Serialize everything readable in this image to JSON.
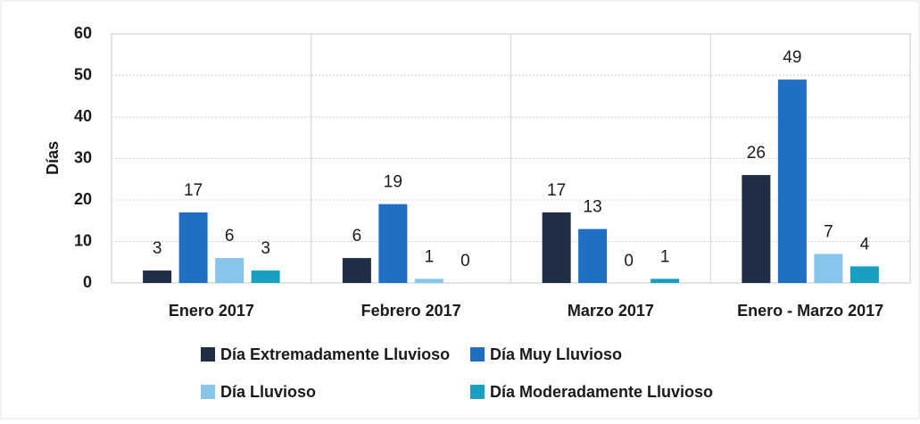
{
  "chart_data": {
    "type": "bar",
    "y_label": "Días",
    "categories": [
      "Enero 2017",
      "Febrero 2017",
      "Marzo 2017",
      "Enero - Marzo 2017"
    ],
    "series": [
      {
        "name": "Día Extremadamente Lluvioso",
        "color": "#1f2d45",
        "values": [
          3,
          6,
          17,
          26
        ]
      },
      {
        "name": "Día Muy Lluvioso",
        "color": "#1f6fc4",
        "values": [
          17,
          19,
          13,
          49
        ]
      },
      {
        "name": "Día Lluvioso",
        "color": "#86c6ea",
        "values": [
          6,
          1,
          0,
          7
        ]
      },
      {
        "name": "Día Moderadamente Lluvioso",
        "color": "#17a0c2",
        "values": [
          3,
          0,
          1,
          4
        ]
      }
    ],
    "ylim": [
      0,
      60
    ],
    "yticks": [
      0,
      10,
      20,
      30,
      40,
      50,
      60
    ],
    "grid": true
  }
}
